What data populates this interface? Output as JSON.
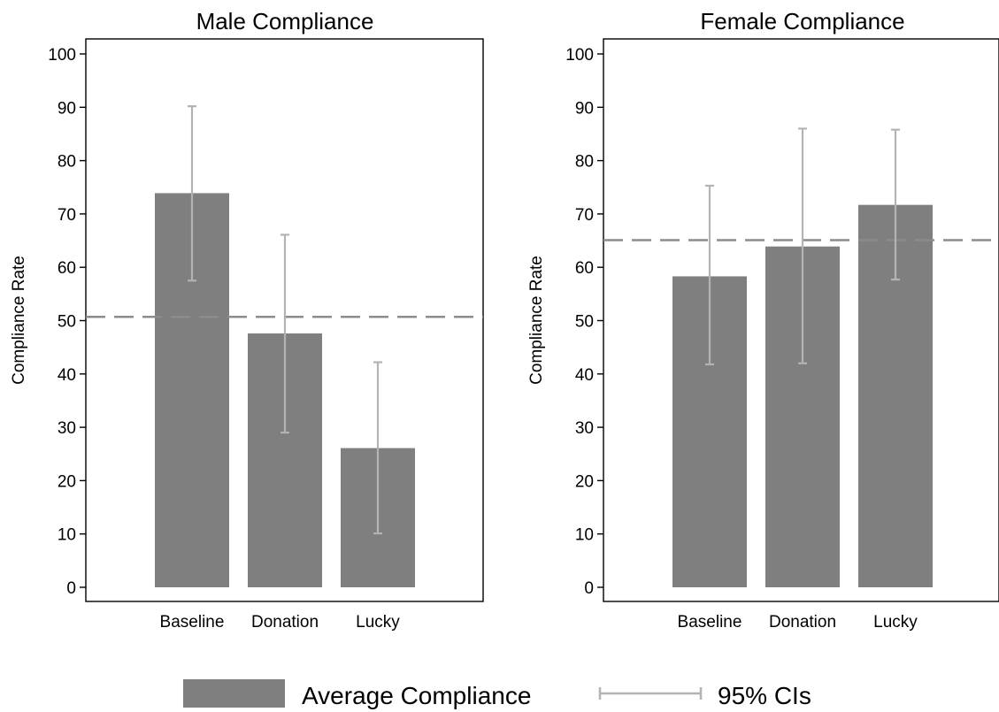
{
  "chart_data": [
    {
      "type": "bar",
      "title": "Male Compliance",
      "xlabel": "",
      "ylabel": "Compliance Rate",
      "ylim": [
        0,
        100
      ],
      "yticks": [
        0,
        10,
        20,
        30,
        40,
        50,
        60,
        70,
        80,
        90,
        100
      ],
      "categories": [
        "Baseline",
        "Donation",
        "Lucky"
      ],
      "values": [
        73.9,
        47.6,
        26.1
      ],
      "ci_lower": [
        57.5,
        29.0,
        10.1
      ],
      "ci_upper": [
        90.2,
        66.1,
        42.2
      ],
      "reference_line": 50.7,
      "grid": false
    },
    {
      "type": "bar",
      "title": "Female Compliance",
      "xlabel": "",
      "ylabel": "Compliance Rate",
      "ylim": [
        0,
        100
      ],
      "yticks": [
        0,
        10,
        20,
        30,
        40,
        50,
        60,
        70,
        80,
        90,
        100
      ],
      "categories": [
        "Baseline",
        "Donation",
        "Lucky"
      ],
      "values": [
        58.3,
        63.9,
        71.7
      ],
      "ci_lower": [
        41.8,
        42.0,
        57.7
      ],
      "ci_upper": [
        75.3,
        86.0,
        85.8
      ],
      "reference_line": 65.1,
      "grid": false
    }
  ],
  "legend": {
    "placement": "bottom",
    "items": [
      {
        "label": "Average Compliance",
        "kind": "bar"
      },
      {
        "label": "95% CIs",
        "kind": "errorbar"
      }
    ]
  },
  "colors": {
    "bar": "#7f7f7f",
    "ci": "#b3b3b3",
    "reference": "#8c8c8c",
    "axis": "#000000"
  }
}
